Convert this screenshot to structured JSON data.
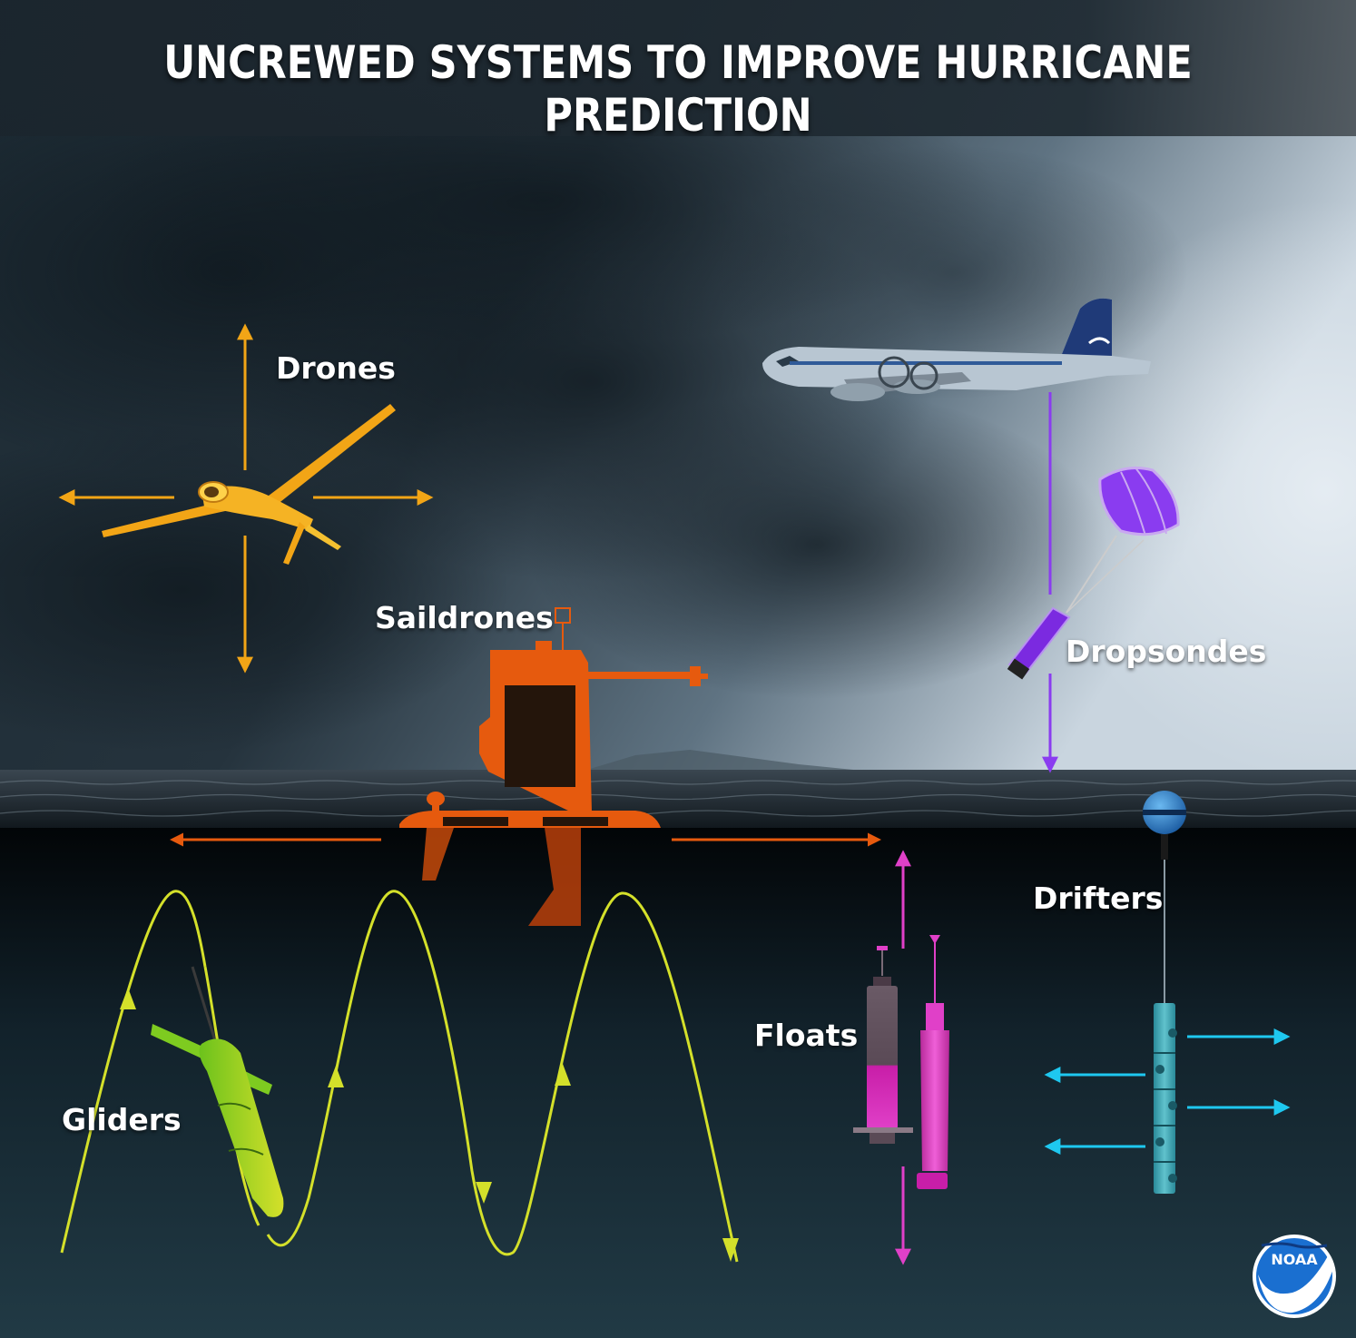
{
  "title": "UNCREWED SYSTEMS TO IMPROVE HURRICANE PREDICTION",
  "labels": {
    "drones": "Drones",
    "saildrones": "Saildrones",
    "dropsondes": "Dropsondes",
    "drifters": "Drifters",
    "floats": "Floats",
    "gliders": "Gliders"
  },
  "logo": {
    "text": "NOAA"
  },
  "colors": {
    "drones": "#f2a516",
    "saildrones": "#e65a0e",
    "dropsondes": "#8a3cf0",
    "gliders": "#d4e02a",
    "floats": "#e040c8",
    "drifters": "#1ec8f0",
    "noaa_blue": "#1a6fd0"
  }
}
